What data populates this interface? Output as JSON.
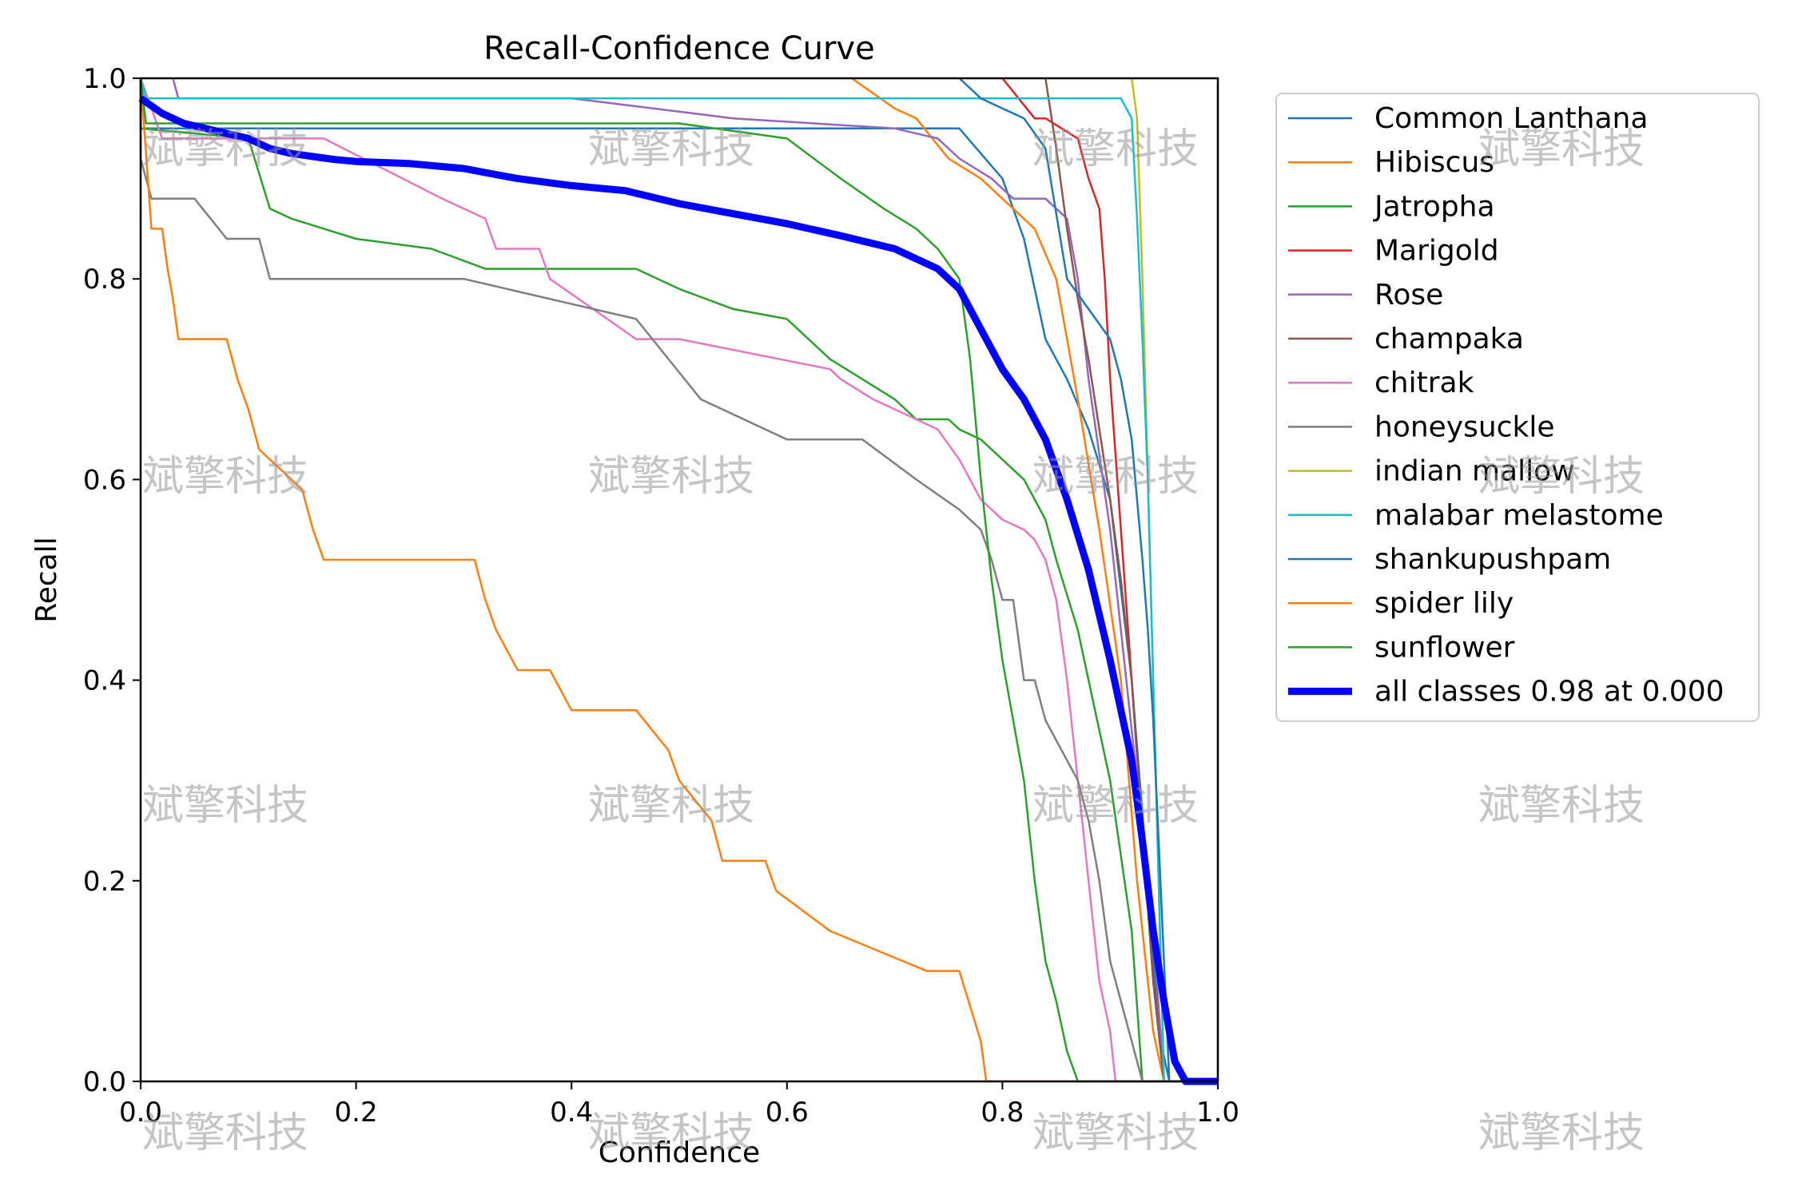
{
  "chart_data": {
    "type": "line",
    "title": "Recall-Confidence Curve",
    "xlabel": "Confidence",
    "ylabel": "Recall",
    "xlim": [
      0.0,
      1.0
    ],
    "ylim": [
      0.0,
      1.0
    ],
    "xticks": [
      "0.0",
      "0.2",
      "0.4",
      "0.6",
      "0.8",
      "1.0"
    ],
    "yticks": [
      "0.0",
      "0.2",
      "0.4",
      "0.6",
      "0.8",
      "1.0"
    ],
    "grid": false,
    "legend_position": "outside-right-top",
    "series": [
      {
        "name": "Common Lanthana",
        "color": "#1f77b4",
        "x": [
          0.0,
          0.0,
          0.76,
          0.8,
          0.82,
          0.84,
          0.86,
          0.88,
          0.9,
          0.92,
          0.935,
          0.945,
          0.955,
          1.0
        ],
        "y": [
          1.0,
          0.95,
          0.95,
          0.9,
          0.84,
          0.74,
          0.7,
          0.65,
          0.58,
          0.4,
          0.2,
          0.05,
          0.0,
          0.0
        ]
      },
      {
        "name": "Hibiscus",
        "color": "#ff7f0e",
        "x": [
          0.66,
          0.7,
          0.72,
          0.75,
          0.78,
          0.8,
          0.83,
          0.85,
          0.87,
          0.89,
          0.91,
          0.925,
          0.94,
          0.95,
          1.0
        ],
        "y": [
          1.0,
          0.97,
          0.96,
          0.92,
          0.9,
          0.88,
          0.85,
          0.8,
          0.68,
          0.55,
          0.4,
          0.2,
          0.05,
          0.0,
          0.0
        ]
      },
      {
        "name": "Jatropha",
        "color": "#2ca02c",
        "x": [
          0.0,
          0.0,
          0.1,
          0.12,
          0.14,
          0.2,
          0.27,
          0.32,
          0.46,
          0.5,
          0.55,
          0.6,
          0.62,
          0.64,
          0.67,
          0.7,
          0.72,
          0.75,
          0.76,
          0.78,
          0.8,
          0.82,
          0.84,
          0.85,
          0.87,
          0.88,
          0.9,
          0.92,
          0.93,
          1.0
        ],
        "y": [
          1.0,
          0.95,
          0.94,
          0.87,
          0.86,
          0.84,
          0.83,
          0.81,
          0.81,
          0.79,
          0.77,
          0.76,
          0.74,
          0.72,
          0.7,
          0.68,
          0.66,
          0.66,
          0.65,
          0.64,
          0.62,
          0.6,
          0.56,
          0.52,
          0.45,
          0.4,
          0.3,
          0.15,
          0.0,
          0.0
        ]
      },
      {
        "name": "Marigold",
        "color": "#d62728",
        "x": [
          0.8,
          0.83,
          0.84,
          0.87,
          0.88,
          0.89,
          0.895,
          0.9,
          0.91,
          0.92,
          0.93,
          0.94,
          0.95,
          1.0
        ],
        "y": [
          1.0,
          0.96,
          0.96,
          0.94,
          0.9,
          0.87,
          0.8,
          0.7,
          0.55,
          0.4,
          0.25,
          0.1,
          0.0,
          0.0
        ]
      },
      {
        "name": "Rose",
        "color": "#9467bd",
        "x": [
          0.03,
          0.035,
          0.4,
          0.55,
          0.7,
          0.74,
          0.76,
          0.79,
          0.81,
          0.84,
          0.86,
          0.87,
          0.88,
          0.9,
          0.92,
          0.94,
          0.95,
          1.0
        ],
        "y": [
          1.0,
          0.98,
          0.98,
          0.96,
          0.95,
          0.94,
          0.92,
          0.9,
          0.88,
          0.88,
          0.86,
          0.8,
          0.7,
          0.55,
          0.35,
          0.15,
          0.0,
          0.0
        ]
      },
      {
        "name": "champaka",
        "color": "#8c564b",
        "x": [
          0.84,
          0.85,
          0.86,
          0.87,
          0.88,
          0.89,
          0.9,
          0.91,
          0.92,
          0.93,
          0.94,
          0.95,
          1.0
        ],
        "y": [
          1.0,
          0.93,
          0.85,
          0.78,
          0.72,
          0.65,
          0.58,
          0.5,
          0.4,
          0.25,
          0.1,
          0.0,
          0.0
        ]
      },
      {
        "name": "chitrak",
        "color": "#e377c2",
        "x": [
          0.0,
          0.02,
          0.17,
          0.28,
          0.32,
          0.33,
          0.37,
          0.38,
          0.42,
          0.46,
          0.5,
          0.64,
          0.65,
          0.68,
          0.72,
          0.74,
          0.76,
          0.78,
          0.8,
          0.82,
          0.83,
          0.84,
          0.85,
          0.86,
          0.87,
          0.88,
          0.89,
          0.9,
          0.905,
          1.0
        ],
        "y": [
          1.0,
          0.94,
          0.94,
          0.88,
          0.86,
          0.83,
          0.83,
          0.8,
          0.77,
          0.74,
          0.74,
          0.71,
          0.7,
          0.68,
          0.66,
          0.65,
          0.62,
          0.58,
          0.56,
          0.55,
          0.54,
          0.52,
          0.48,
          0.4,
          0.3,
          0.2,
          0.1,
          0.05,
          0.0,
          0.0
        ]
      },
      {
        "name": "honeysuckle",
        "color": "#7f7f7f",
        "x": [
          0.0,
          0.0,
          0.01,
          0.05,
          0.08,
          0.11,
          0.12,
          0.3,
          0.46,
          0.52,
          0.6,
          0.67,
          0.72,
          0.76,
          0.78,
          0.79,
          0.8,
          0.81,
          0.82,
          0.83,
          0.84,
          0.85,
          0.87,
          0.88,
          0.89,
          0.9,
          0.91,
          0.92,
          0.93,
          1.0
        ],
        "y": [
          1.0,
          0.92,
          0.88,
          0.88,
          0.84,
          0.84,
          0.8,
          0.8,
          0.76,
          0.68,
          0.64,
          0.64,
          0.6,
          0.57,
          0.55,
          0.52,
          0.48,
          0.48,
          0.4,
          0.4,
          0.36,
          0.34,
          0.3,
          0.26,
          0.2,
          0.12,
          0.08,
          0.04,
          0.0,
          0.0
        ]
      },
      {
        "name": "indian mallow",
        "color": "#bcbd22",
        "x": [
          0.92,
          0.925,
          0.93,
          0.935,
          0.94,
          0.945,
          0.95,
          1.0
        ],
        "y": [
          1.0,
          0.96,
          0.8,
          0.6,
          0.4,
          0.2,
          0.0,
          0.0
        ]
      },
      {
        "name": "malabar melastome",
        "color": "#17becf",
        "x": [
          0.0,
          0.005,
          0.91,
          0.92,
          0.925,
          0.93,
          0.935,
          0.94,
          0.945,
          0.95,
          1.0
        ],
        "y": [
          1.0,
          0.98,
          0.98,
          0.96,
          0.86,
          0.74,
          0.6,
          0.4,
          0.2,
          0.0,
          0.0
        ]
      },
      {
        "name": "shankupushpam",
        "color": "#1f77b4",
        "x": [
          0.76,
          0.78,
          0.8,
          0.82,
          0.84,
          0.86,
          0.88,
          0.9,
          0.91,
          0.92,
          0.93,
          0.935,
          0.94,
          0.945,
          0.95,
          0.955,
          1.0
        ],
        "y": [
          1.0,
          0.98,
          0.97,
          0.96,
          0.93,
          0.8,
          0.77,
          0.74,
          0.7,
          0.64,
          0.52,
          0.45,
          0.36,
          0.24,
          0.12,
          0.0,
          0.0
        ]
      },
      {
        "name": "spider lily",
        "color": "#ff7f0e",
        "x": [
          0.0,
          0.01,
          0.02,
          0.025,
          0.03,
          0.035,
          0.08,
          0.09,
          0.1,
          0.11,
          0.15,
          0.16,
          0.17,
          0.31,
          0.32,
          0.33,
          0.35,
          0.38,
          0.4,
          0.46,
          0.49,
          0.5,
          0.53,
          0.54,
          0.58,
          0.59,
          0.64,
          0.73,
          0.76,
          0.78,
          0.785,
          1.0
        ],
        "y": [
          1.0,
          0.85,
          0.85,
          0.81,
          0.78,
          0.74,
          0.74,
          0.7,
          0.67,
          0.63,
          0.59,
          0.55,
          0.52,
          0.52,
          0.48,
          0.45,
          0.41,
          0.41,
          0.37,
          0.37,
          0.33,
          0.3,
          0.26,
          0.22,
          0.22,
          0.19,
          0.15,
          0.11,
          0.11,
          0.04,
          0.0,
          0.0
        ]
      },
      {
        "name": "sunflower",
        "color": "#2ca02c",
        "x": [
          0.0,
          0.005,
          0.25,
          0.5,
          0.6,
          0.65,
          0.69,
          0.72,
          0.74,
          0.76,
          0.77,
          0.78,
          0.79,
          0.8,
          0.82,
          0.83,
          0.84,
          0.85,
          0.86,
          0.87,
          0.88,
          0.89,
          0.9,
          1.0
        ],
        "y": [
          1.0,
          0.955,
          0.955,
          0.955,
          0.94,
          0.9,
          0.87,
          0.85,
          0.83,
          0.8,
          0.72,
          0.6,
          0.5,
          0.42,
          0.3,
          0.2,
          0.12,
          0.08,
          0.03,
          0.0,
          0.0,
          0.0,
          0.0,
          0.0
        ]
      },
      {
        "name": "all classes 0.98 at 0.000",
        "color": "#0000ff",
        "bold": true,
        "x": [
          0.0,
          0.02,
          0.04,
          0.06,
          0.08,
          0.1,
          0.12,
          0.14,
          0.16,
          0.18,
          0.2,
          0.25,
          0.3,
          0.35,
          0.4,
          0.45,
          0.5,
          0.55,
          0.6,
          0.65,
          0.7,
          0.72,
          0.74,
          0.76,
          0.78,
          0.8,
          0.82,
          0.84,
          0.86,
          0.88,
          0.9,
          0.92,
          0.93,
          0.94,
          0.95,
          0.96,
          0.97,
          1.0
        ],
        "y": [
          0.98,
          0.965,
          0.955,
          0.95,
          0.945,
          0.94,
          0.93,
          0.925,
          0.922,
          0.919,
          0.917,
          0.915,
          0.91,
          0.9,
          0.893,
          0.888,
          0.875,
          0.865,
          0.855,
          0.843,
          0.83,
          0.82,
          0.81,
          0.79,
          0.75,
          0.71,
          0.68,
          0.64,
          0.58,
          0.51,
          0.42,
          0.32,
          0.24,
          0.15,
          0.08,
          0.02,
          0.0,
          0.0
        ]
      }
    ]
  },
  "watermark": {
    "text": "斌擎科技"
  }
}
